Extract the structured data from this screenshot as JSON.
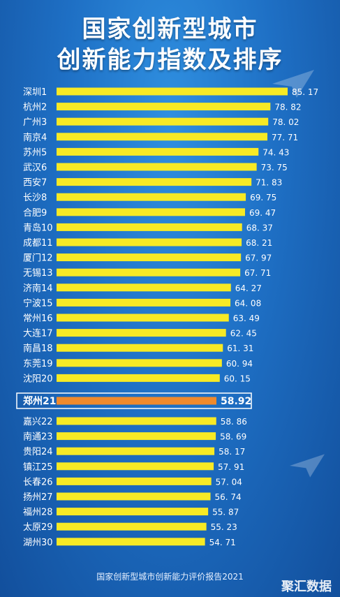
{
  "title_line1": "国家创新型城市",
  "title_line2": "创新能力指数及排序",
  "footer": "国家创新型城市创新能力评价报告2021",
  "watermark": "聚汇数据",
  "colors": {
    "bar": "#f7ea25",
    "highlight": "#f08a2c",
    "background": "#1e6fc4"
  },
  "chart_data": {
    "type": "bar",
    "orientation": "horizontal",
    "categories": [
      "深圳1",
      "杭州2",
      "广州3",
      "南京4",
      "苏州5",
      "武汉6",
      "西安7",
      "长沙8",
      "合肥9",
      "青岛10",
      "成都11",
      "厦门12",
      "无锡13",
      "济南14",
      "宁波15",
      "常州16",
      "大连17",
      "南昌18",
      "东莞19",
      "沈阳20",
      "郑州21",
      "嘉兴22",
      "南通23",
      "贵阳24",
      "镇江25",
      "长春26",
      "扬州27",
      "福州28",
      "太原29",
      "湖州30"
    ],
    "values": [
      85.17,
      78.82,
      78.02,
      77.71,
      74.43,
      73.75,
      71.83,
      69.75,
      69.47,
      68.37,
      68.21,
      67.97,
      67.71,
      64.27,
      64.08,
      63.49,
      62.45,
      61.31,
      60.94,
      60.15,
      58.92,
      58.86,
      58.69,
      58.17,
      57.91,
      57.04,
      56.74,
      55.87,
      55.23,
      54.71
    ],
    "value_labels": [
      "85. 17",
      "78. 82",
      "78. 02",
      "77. 71",
      "74. 43",
      "73. 75",
      "71. 83",
      "69. 75",
      "69. 47",
      "68. 37",
      "68. 21",
      "67. 97",
      "67. 71",
      "64. 27",
      "64. 08",
      "63. 49",
      "62. 45",
      "61. 31",
      "60. 94",
      "60. 15",
      "58.92",
      "58. 86",
      "58. 69",
      "58. 17",
      "57. 91",
      "57. 04",
      "56. 74",
      "55. 87",
      "55. 23",
      "54. 71"
    ],
    "highlight_index": 20,
    "title": "",
    "xlabel": "",
    "ylabel": ""
  }
}
